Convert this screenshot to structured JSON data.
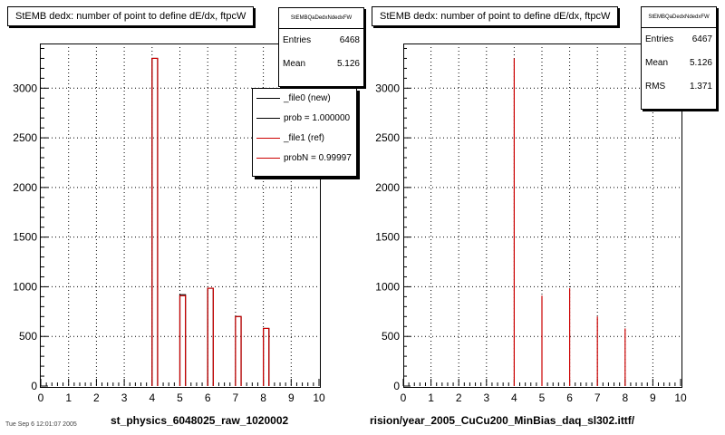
{
  "colors": {
    "frame": "#000000",
    "grid": "#000000",
    "new_hist": "#000000",
    "ref_hist": "#cc0000",
    "background": "#ffffff"
  },
  "left": {
    "title": "StEMB dedx: number of point to define dE/dx, ftpcW",
    "stats": {
      "name": "StEMBQaDedxNdedxFW",
      "entries_label": "Entries",
      "entries_value": "6468",
      "mean_label": "Mean",
      "mean_value": "5.126"
    },
    "legend": [
      {
        "label": "_file0 (new)",
        "color": "#000000"
      },
      {
        "label": "prob = 1.000000",
        "color": "#000000"
      },
      {
        "label": "_file1 (ref)",
        "color": "#cc0000"
      },
      {
        "label": "probN = 0.99997",
        "color": "#cc0000"
      }
    ],
    "x_title": "st_physics_6048025_raw_1020002"
  },
  "right": {
    "title": "StEMB dedx: number of point to define dE/dx, ftpcW",
    "stats": {
      "name": "StEMBQaDedxNdedxFW",
      "entries_label": "Entries",
      "entries_value": "6467",
      "mean_label": "Mean",
      "mean_value": "5.126",
      "rms_label": "RMS",
      "rms_value": "1.371"
    },
    "x_title": "rision/year_2005_CuCu200_MinBias_daq_sl302.ittf/"
  },
  "footer_text": "Tue Sep 6 12:01:07 2005",
  "chart_data": [
    {
      "type": "bar",
      "title": "StEMB dedx: number of point to define dE/dx, ftpcW",
      "xlabel": "st_physics_6048025_raw_1020002",
      "ylabel": "",
      "xlim": [
        0,
        10
      ],
      "ylim": [
        0,
        3450
      ],
      "x_ticks": [
        "0",
        "1",
        "2",
        "3",
        "4",
        "5",
        "6",
        "7",
        "8",
        "9",
        "10"
      ],
      "y_ticks": [
        "0",
        "500",
        "1000",
        "1500",
        "2000",
        "2500",
        "3000"
      ],
      "grid": true,
      "legend_position": "top-right",
      "bin_width": 0.2,
      "series": [
        {
          "name": "_file0 (new)",
          "bins": [
            4.0,
            5.0,
            6.0,
            7.0,
            8.0
          ],
          "values": [
            3300,
            920,
            985,
            700,
            580
          ]
        },
        {
          "name": "_file1 (ref)",
          "bins": [
            4.0,
            5.0,
            6.0,
            7.0,
            8.0
          ],
          "values": [
            3300,
            910,
            985,
            700,
            580
          ]
        }
      ]
    },
    {
      "type": "bar",
      "title": "StEMB dedx: number of point to define dE/dx, ftpcW",
      "xlabel": "rision/year_2005_CuCu200_MinBias_daq_sl302.ittf/",
      "ylabel": "",
      "xlim": [
        0,
        10
      ],
      "ylim": [
        0,
        3450
      ],
      "x_ticks": [
        "0",
        "1",
        "2",
        "3",
        "4",
        "5",
        "6",
        "7",
        "8",
        "9",
        "10"
      ],
      "y_ticks": [
        "0",
        "500",
        "1000",
        "1500",
        "2000",
        "2500",
        "3000"
      ],
      "grid": true,
      "series": [
        {
          "bins": [
            4.0,
            5.0,
            6.0,
            7.0,
            8.0
          ],
          "values": [
            3300,
            910,
            985,
            700,
            580
          ]
        }
      ]
    }
  ]
}
